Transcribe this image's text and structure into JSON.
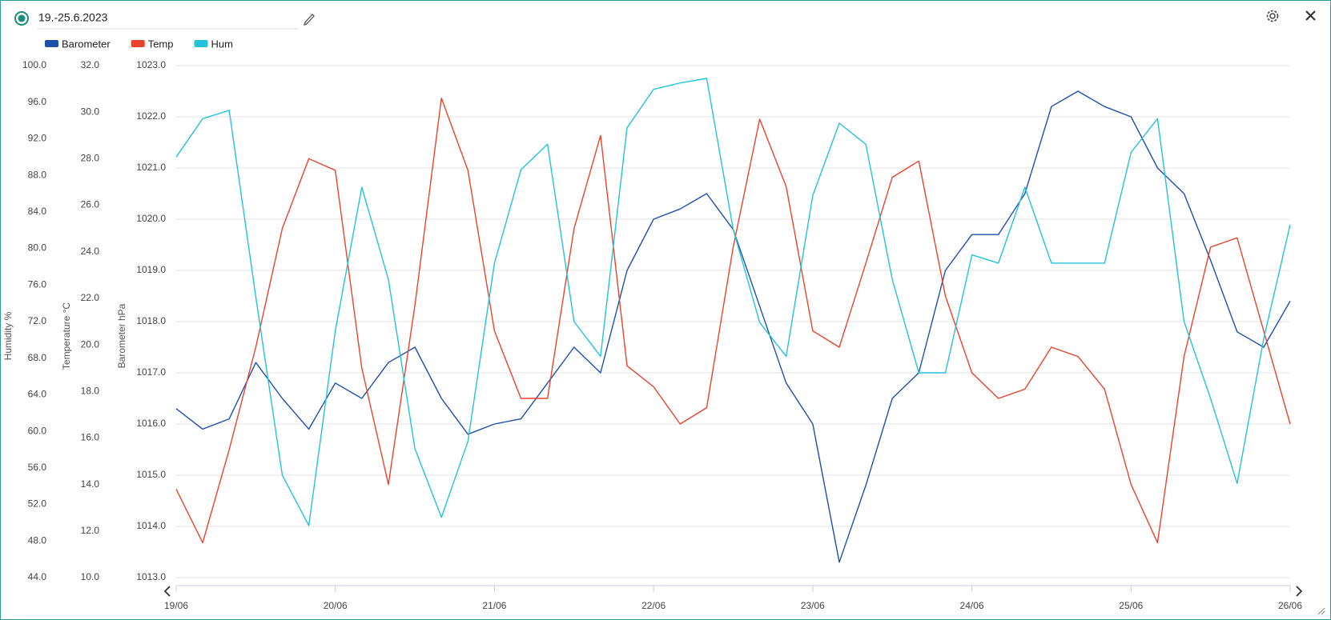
{
  "chart_data": {
    "type": "line",
    "title": "19.-25.6.2023",
    "ylabel": "Barometer hPa",
    "y2label": "Temperature °C",
    "y3label": "Humidity %",
    "grid": true,
    "legend": "top-left",
    "xlim": [
      0,
      168
    ],
    "xticks": [
      {
        "value": 0,
        "label": "19/06"
      },
      {
        "value": 24,
        "label": "20/06"
      },
      {
        "value": 48,
        "label": "21/06"
      },
      {
        "value": 72,
        "label": "22/06"
      },
      {
        "value": 96,
        "label": "23/06"
      },
      {
        "value": 120,
        "label": "24/06"
      },
      {
        "value": 144,
        "label": "25/06"
      },
      {
        "value": 168,
        "label": "26/06"
      }
    ],
    "ylim": [
      1013,
      1023
    ],
    "yticks": [
      {
        "value": 1013,
        "label": "1013.0"
      },
      {
        "value": 1014,
        "label": "1014.0"
      },
      {
        "value": 1015,
        "label": "1015.0"
      },
      {
        "value": 1016,
        "label": "1016.0"
      },
      {
        "value": 1017,
        "label": "1017.0"
      },
      {
        "value": 1018,
        "label": "1018.0"
      },
      {
        "value": 1019,
        "label": "1019.0"
      },
      {
        "value": 1020,
        "label": "1020.0"
      },
      {
        "value": 1021,
        "label": "1021.0"
      },
      {
        "value": 1022,
        "label": "1022.0"
      },
      {
        "value": 1023,
        "label": "1023.0"
      }
    ],
    "y2lim": [
      10,
      32
    ],
    "y2ticks": [
      {
        "value": 10,
        "label": "10.0"
      },
      {
        "value": 12,
        "label": "12.0"
      },
      {
        "value": 14,
        "label": "14.0"
      },
      {
        "value": 16,
        "label": "16.0"
      },
      {
        "value": 18,
        "label": "18.0"
      },
      {
        "value": 20,
        "label": "20.0"
      },
      {
        "value": 22,
        "label": "22.0"
      },
      {
        "value": 24,
        "label": "24.0"
      },
      {
        "value": 26,
        "label": "26.0"
      },
      {
        "value": 28,
        "label": "28.0"
      },
      {
        "value": 30,
        "label": "30.0"
      },
      {
        "value": 32,
        "label": "32.0"
      }
    ],
    "y3lim": [
      44,
      100
    ],
    "y3ticks": [
      {
        "value": 44,
        "label": "44.0"
      },
      {
        "value": 48,
        "label": "48.0"
      },
      {
        "value": 52,
        "label": "52.0"
      },
      {
        "value": 56,
        "label": "56.0"
      },
      {
        "value": 60,
        "label": "60.0"
      },
      {
        "value": 64,
        "label": "64.0"
      },
      {
        "value": 68,
        "label": "68.0"
      },
      {
        "value": 72,
        "label": "72.0"
      },
      {
        "value": 76,
        "label": "76.0"
      },
      {
        "value": 80,
        "label": "80.0"
      },
      {
        "value": 84,
        "label": "84.0"
      },
      {
        "value": 88,
        "label": "88.0"
      },
      {
        "value": 92,
        "label": "92.0"
      },
      {
        "value": 96,
        "label": "96.0"
      },
      {
        "value": 100,
        "label": "100.0"
      }
    ],
    "x": [
      0,
      4,
      8,
      12,
      16,
      20,
      24,
      28,
      32,
      36,
      40,
      44,
      48,
      52,
      56,
      60,
      64,
      68,
      72,
      76,
      80,
      84,
      88,
      92,
      96,
      100,
      104,
      108,
      112,
      116,
      120,
      124,
      128,
      132,
      136,
      140,
      144,
      148,
      152,
      156,
      160,
      164,
      168
    ],
    "series": [
      {
        "name": "Barometer",
        "color": "#1f4fad",
        "axis": "y",
        "values": [
          1016.3,
          1015.9,
          1016.1,
          1017.2,
          1016.5,
          1015.9,
          1016.8,
          1016.5,
          1017.2,
          1017.5,
          1016.5,
          1015.8,
          1016.0,
          1016.1,
          1016.8,
          1017.5,
          1017.0,
          1019.0,
          1020.0,
          1020.2,
          1020.5,
          1019.8,
          1018.3,
          1016.8,
          1016.0,
          1013.3,
          1014.8,
          1016.5,
          1017.0,
          1019.0,
          1019.7,
          1019.7,
          1020.5,
          1022.2,
          1022.5,
          1022.2,
          1022.0,
          1021.0,
          1020.5,
          1019.2,
          1017.8,
          1017.5,
          1018.4
        ]
      },
      {
        "name": "Temp",
        "color": "#e8432c",
        "axis": "y2",
        "values": [
          13.8,
          11.5,
          15.5,
          19.9,
          25.0,
          28.0,
          27.5,
          19.0,
          14.0,
          21.7,
          30.6,
          27.5,
          20.6,
          17.7,
          17.7,
          25.0,
          29.0,
          19.1,
          18.2,
          16.6,
          17.3,
          24.2,
          29.7,
          26.8,
          20.6,
          19.9,
          23.5,
          27.2,
          27.9,
          22.1,
          18.8,
          17.7,
          18.1,
          19.9,
          19.5,
          18.1,
          14.0,
          11.5,
          19.5,
          24.2,
          24.6,
          20.6,
          16.6
        ]
      },
      {
        "name": "Hum",
        "color": "#22c3db",
        "axis": "y3",
        "values": [
          90.0,
          94.2,
          95.1,
          74.7,
          55.2,
          49.7,
          71.0,
          86.7,
          76.6,
          58.1,
          50.6,
          58.9,
          78.4,
          88.6,
          91.4,
          72.0,
          68.2,
          93.2,
          97.4,
          98.1,
          98.6,
          82.1,
          71.9,
          68.2,
          85.8,
          93.7,
          91.4,
          76.6,
          66.4,
          66.4,
          79.3,
          78.4,
          86.7,
          78.4,
          78.4,
          78.4,
          90.5,
          94.2,
          72.0,
          63.6,
          54.3,
          70.1,
          82.6
        ]
      }
    ]
  }
}
